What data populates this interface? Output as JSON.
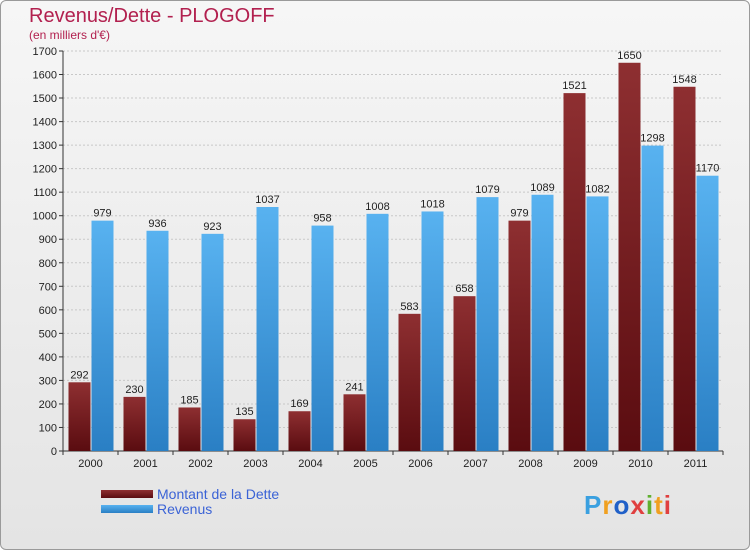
{
  "title": "Revenus/Dette - PLOGOFF",
  "subtitle": "(en milliers d'€)",
  "legend": {
    "debt_label": "Montant de la Dette",
    "revenue_label": "Revenus"
  },
  "logo_text": "Proxiti",
  "colors": {
    "debt": "#7a1e22",
    "revenue": "#4fa8e6",
    "accent_text": "#b2204f",
    "legend_text": "#3b63d6"
  },
  "chart_data": {
    "type": "bar",
    "title": "Revenus/Dette - PLOGOFF",
    "subtitle": "(en milliers d'€)",
    "categories": [
      "2000",
      "2001",
      "2002",
      "2003",
      "2004",
      "2005",
      "2006",
      "2007",
      "2008",
      "2009",
      "2010",
      "2011"
    ],
    "series": [
      {
        "name": "Montant de la Dette",
        "values": [
          292,
          230,
          185,
          135,
          169,
          241,
          583,
          658,
          979,
          1521,
          1650,
          1548
        ]
      },
      {
        "name": "Revenus",
        "values": [
          979,
          936,
          923,
          1037,
          958,
          1008,
          1018,
          1079,
          1089,
          1082,
          1298,
          1170
        ]
      }
    ],
    "ylim": [
      0,
      1700
    ],
    "yticks": [
      0,
      100,
      200,
      300,
      400,
      500,
      600,
      700,
      800,
      900,
      1000,
      1100,
      1200,
      1300,
      1400,
      1500,
      1600,
      1700
    ],
    "grid": true,
    "legend_position": "bottom-left"
  }
}
